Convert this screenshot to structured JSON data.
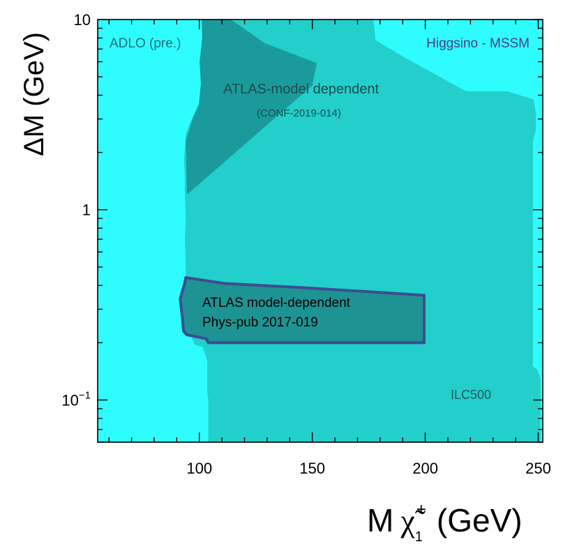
{
  "chart_data": {
    "type": "area",
    "title": "",
    "xlabel": "M",
    "xlabel_symbol": "χ̃",
    "xlabel_sub": "1",
    "xlabel_sup": "+",
    "xlabel_unit": "(GeV)",
    "ylabel": "ΔM (GeV)",
    "xscale": "linear",
    "yscale": "log",
    "xlim": [
      55,
      252
    ],
    "ylim": [
      0.06,
      10
    ],
    "x_ticks": [
      100,
      150,
      200,
      250
    ],
    "x_tick_labels": [
      "100",
      "150",
      "200",
      "250"
    ],
    "y_ticks": [
      0.1,
      1,
      10
    ],
    "y_tick_labels": [
      {
        "base": "10",
        "sup": "−1"
      },
      {
        "base": "1",
        "sup": ""
      },
      {
        "base": "10",
        "sup": ""
      }
    ],
    "annotations": {
      "adlo": "ADLO (pre.)",
      "higgsino": "Higgsino - MSSM",
      "atlas_conf_title": "ATLAS-model dependent",
      "atlas_conf_ref": "(CONF-2019-014)",
      "atlas_phys_title": "ATLAS model-dependent",
      "atlas_phys_ref": "Phys-pub 2017-019",
      "ilc": "ILC500"
    },
    "series": [
      {
        "name": "ADLO (pre.)",
        "color": "#2ffdfd",
        "points": [
          [
            55,
            0.06
          ],
          [
            55,
            10
          ],
          [
            252,
            10
          ],
          [
            252,
            0.06
          ]
        ]
      },
      {
        "name": "ILC500",
        "color": "#22cfcb",
        "points": [
          [
            104,
            0.06
          ],
          [
            104,
            0.1
          ],
          [
            103.5,
            0.11
          ],
          [
            103.5,
            0.16
          ],
          [
            101.5,
            0.19
          ],
          [
            98,
            0.195
          ],
          [
            96,
            0.22
          ],
          [
            94,
            0.25
          ],
          [
            92.6,
            0.27
          ],
          [
            93.2,
            0.3
          ],
          [
            94,
            0.4
          ],
          [
            94,
            0.5
          ],
          [
            93.6,
            0.7
          ],
          [
            94,
            0.9
          ],
          [
            93.6,
            1.2
          ],
          [
            93.6,
            1.5
          ],
          [
            93.2,
            1.8
          ],
          [
            94,
            2.5
          ],
          [
            96.6,
            3.0
          ],
          [
            99.8,
            3.6
          ],
          [
            100.7,
            4.6
          ],
          [
            100.1,
            6
          ],
          [
            101.3,
            8
          ],
          [
            101.9,
            10
          ],
          [
            177,
            10
          ],
          [
            178,
            7.8
          ],
          [
            190,
            6.4
          ],
          [
            218,
            4.2
          ],
          [
            236,
            4.2
          ],
          [
            248,
            3.8
          ],
          [
            249,
            3.2
          ],
          [
            248.9,
            2.6
          ],
          [
            247.6,
            2.3
          ],
          [
            247.6,
            0.15
          ],
          [
            249.5,
            0.145
          ],
          [
            251,
            0.13
          ],
          [
            251,
            0.06
          ]
        ]
      },
      {
        "name": "ATLAS-model dependent (CONF-2019-014)",
        "color": "#1a9a9b",
        "points": [
          [
            101,
            10
          ],
          [
            114,
            10
          ],
          [
            129,
            7.5
          ],
          [
            152,
            5.9
          ],
          [
            150,
            4.5
          ],
          [
            94.5,
            1.2
          ],
          [
            94,
            2.3
          ],
          [
            96.6,
            2.9
          ],
          [
            99.8,
            3.6
          ],
          [
            100.7,
            4.6
          ],
          [
            100.1,
            6
          ],
          [
            101.3,
            8
          ]
        ]
      },
      {
        "name": "ATLAS model-dependent Phys-pub 2017-019",
        "color": "#1e9393",
        "stroke": "#3c4d8f",
        "points": [
          [
            94,
            0.44
          ],
          [
            111,
            0.41
          ],
          [
            145,
            0.39
          ],
          [
            176,
            0.37
          ],
          [
            199.5,
            0.355
          ],
          [
            199.5,
            0.2
          ],
          [
            104,
            0.2
          ],
          [
            103,
            0.21
          ],
          [
            94.5,
            0.22
          ],
          [
            93,
            0.23
          ],
          [
            92.5,
            0.27
          ],
          [
            91.5,
            0.34
          ],
          [
            93.5,
            0.41
          ]
        ]
      }
    ]
  }
}
